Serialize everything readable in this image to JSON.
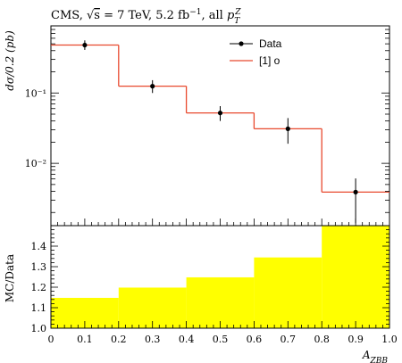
{
  "chart_data": {
    "type": "line",
    "title": "CMS, √s = 7 TeV, 5.2 fb⁻¹, all p_T^Z",
    "xlabel": "A_ZBB",
    "x_ticks": [
      "0",
      "0.1",
      "0.2",
      "0.3",
      "0.4",
      "0.5",
      "0.6",
      "0.7",
      "0.8",
      "0.9",
      "1.0"
    ],
    "xlim": [
      0,
      1.0
    ],
    "upper_panel": {
      "ylabel": "dσ/0.2 (pb)",
      "y_scale": "log",
      "ylim": [
        0.0013,
        0.9
      ],
      "y_ticks": [
        "10⁻¹",
        "10⁻²"
      ],
      "legend_position": "top-right",
      "series": [
        {
          "name": "Data",
          "style": "points with error bars",
          "color": "#000000",
          "x": [
            0.1,
            0.3,
            0.5,
            0.7,
            0.9
          ],
          "y": [
            0.48,
            0.125,
            0.052,
            0.031,
            0.0039
          ],
          "err_low": [
            0.07,
            0.025,
            0.012,
            0.012,
            0.0025
          ],
          "err_high": [
            0.08,
            0.027,
            0.013,
            0.013,
            0.0022
          ]
        },
        {
          "name": "[1] o",
          "style": "histogram",
          "color": "#e8492e",
          "bin_edges": [
            0,
            0.2,
            0.4,
            0.6,
            0.8,
            1.0
          ],
          "values": [
            0.48,
            0.125,
            0.052,
            0.031,
            0.0039
          ]
        }
      ]
    },
    "lower_panel": {
      "ylabel": "MC/Data",
      "ylim": [
        1.0,
        1.5
      ],
      "y_ticks": [
        "1.0",
        "1.1",
        "1.2",
        "1.3",
        "1.4"
      ],
      "series": [
        {
          "name": "ratio band",
          "style": "filled histogram",
          "color": "#ffff00",
          "bin_edges": [
            0,
            0.2,
            0.4,
            0.6,
            0.8,
            1.0
          ],
          "values": [
            1.148,
            1.198,
            1.248,
            1.345,
            1.5
          ]
        }
      ]
    }
  },
  "legend": {
    "data_label": "Data",
    "model_label": "[1] o"
  }
}
